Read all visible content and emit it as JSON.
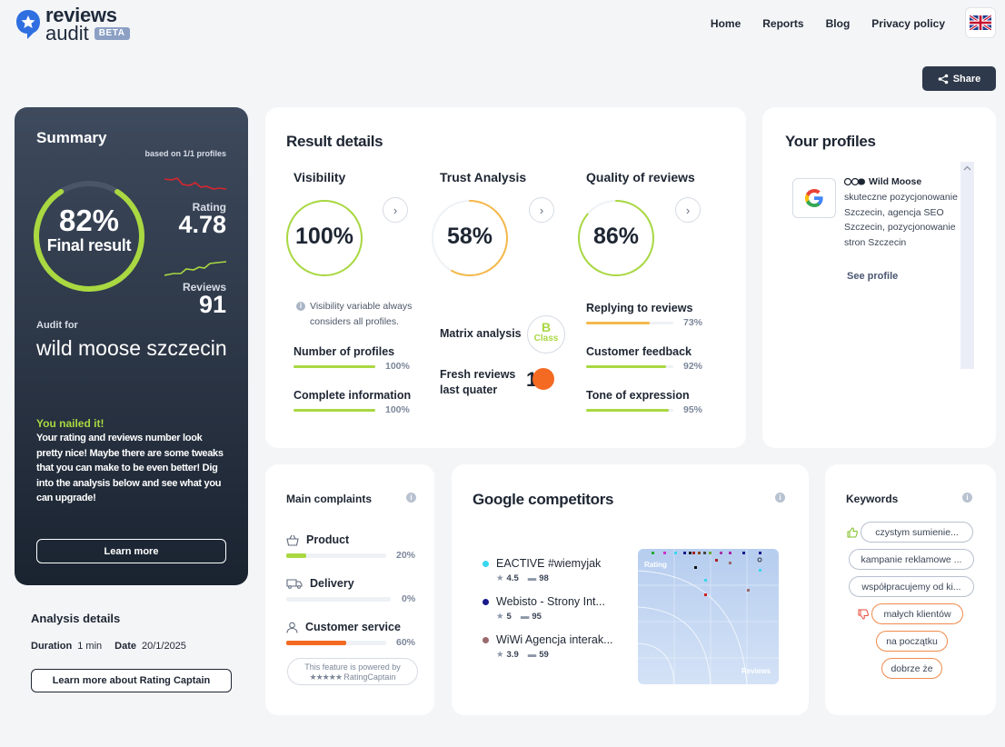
{
  "brand": {
    "name_line1": "reviews",
    "name_line2": "audit",
    "beta": "BETA"
  },
  "nav": {
    "items": [
      "Home",
      "Reports",
      "Blog",
      "Privacy policy"
    ]
  },
  "share_label": "Share",
  "summary": {
    "title": "Summary",
    "based_on": "based on 1/1 profiles",
    "final_percent": "82%",
    "final_label": "Final result",
    "final_value": 0.82,
    "rating_label": "Rating",
    "rating_value": "4.78",
    "reviews_label": "Reviews",
    "reviews_value": "91",
    "audit_for": "Audit for",
    "audit_name": "wild moose szczecin",
    "nailed_title": "You nailed it!",
    "nailed_text": "Your rating and reviews number look pretty nice! Maybe there are some tweaks that you can make to be even better! Dig into the analysis below and see what you can upgrade!",
    "learn_more": "Learn more"
  },
  "analysis": {
    "title": "Analysis details",
    "duration_label": "Duration",
    "duration_value": "1 min",
    "date_label": "Date",
    "date_value": "20/1/2025",
    "learn_rc": "Learn more about Rating Captain"
  },
  "result": {
    "title": "Result details",
    "visibility": {
      "label": "Visibility",
      "value": "100%",
      "fraction": 1.0,
      "color": "#a9d841"
    },
    "trust": {
      "label": "Trust Analysis",
      "value": "58%",
      "fraction": 0.58,
      "color": "#f5b84a"
    },
    "quality": {
      "label": "Quality of reviews",
      "value": "86%",
      "fraction": 0.86,
      "color": "#a9d841"
    },
    "visibility_note": "Visibility variable always considers all profiles.",
    "number_of_profiles": {
      "label": "Number of profiles",
      "value": "100%",
      "fraction": 1.0
    },
    "complete_information": {
      "label": "Complete information",
      "value": "100%",
      "fraction": 1.0
    },
    "matrix_label": "Matrix analysis",
    "class_letter": "B",
    "class_word": "Class",
    "fresh_label": "Fresh reviews last quater",
    "fresh_value": "1",
    "replying": {
      "label": "Replying to reviews",
      "value": "73%",
      "fraction": 0.73,
      "color": "#f5b84a"
    },
    "feedback": {
      "label": "Customer feedback",
      "value": "92%",
      "fraction": 0.92,
      "color": "#a9d841"
    },
    "tone": {
      "label": "Tone of expression",
      "value": "95%",
      "fraction": 0.95,
      "color": "#a9d841"
    }
  },
  "profiles": {
    "title": "Your profiles",
    "name": "Wild Moose",
    "description": "skuteczne pozycjonowanie Szczecin, agencja SEO Szczecin, pozycjonowanie stron Szczecin",
    "see_profile": "See profile"
  },
  "complaints": {
    "title": "Main complaints",
    "items": [
      {
        "label": "Product",
        "value": "20%",
        "fraction": 0.2,
        "color": "#a9d841",
        "icon": "basket-icon"
      },
      {
        "label": "Delivery",
        "value": "0%",
        "fraction": 0.0,
        "color": "#a9d841",
        "icon": "truck-icon"
      },
      {
        "label": "Customer service",
        "value": "60%",
        "fraction": 0.6,
        "color": "#f46a23",
        "icon": "person-icon"
      }
    ],
    "powered_line1": "This feature is powered by",
    "powered_line2": "RatingCaptain"
  },
  "competitors": {
    "title": "Google competitors",
    "items": [
      {
        "name": "EACTIVE #wiemyjak",
        "rating": "4.5",
        "reviews": "98",
        "color": "#3ad6f0"
      },
      {
        "name": "Webisto - Strony Int...",
        "rating": "5",
        "reviews": "95",
        "color": "#1a1a8c"
      },
      {
        "name": "WiWi Agencja interak...",
        "rating": "3.9",
        "reviews": "59",
        "color": "#9a6a6a"
      }
    ],
    "matrix_y": "Rating",
    "matrix_x": "Reviews"
  },
  "keywords": {
    "title": "Keywords",
    "positive": [
      "czystym sumienie...",
      "kampanie reklamowe ...",
      "współpracujemy od ki..."
    ],
    "negative": [
      "małych klientów",
      "na początku",
      "dobrze że"
    ]
  }
}
